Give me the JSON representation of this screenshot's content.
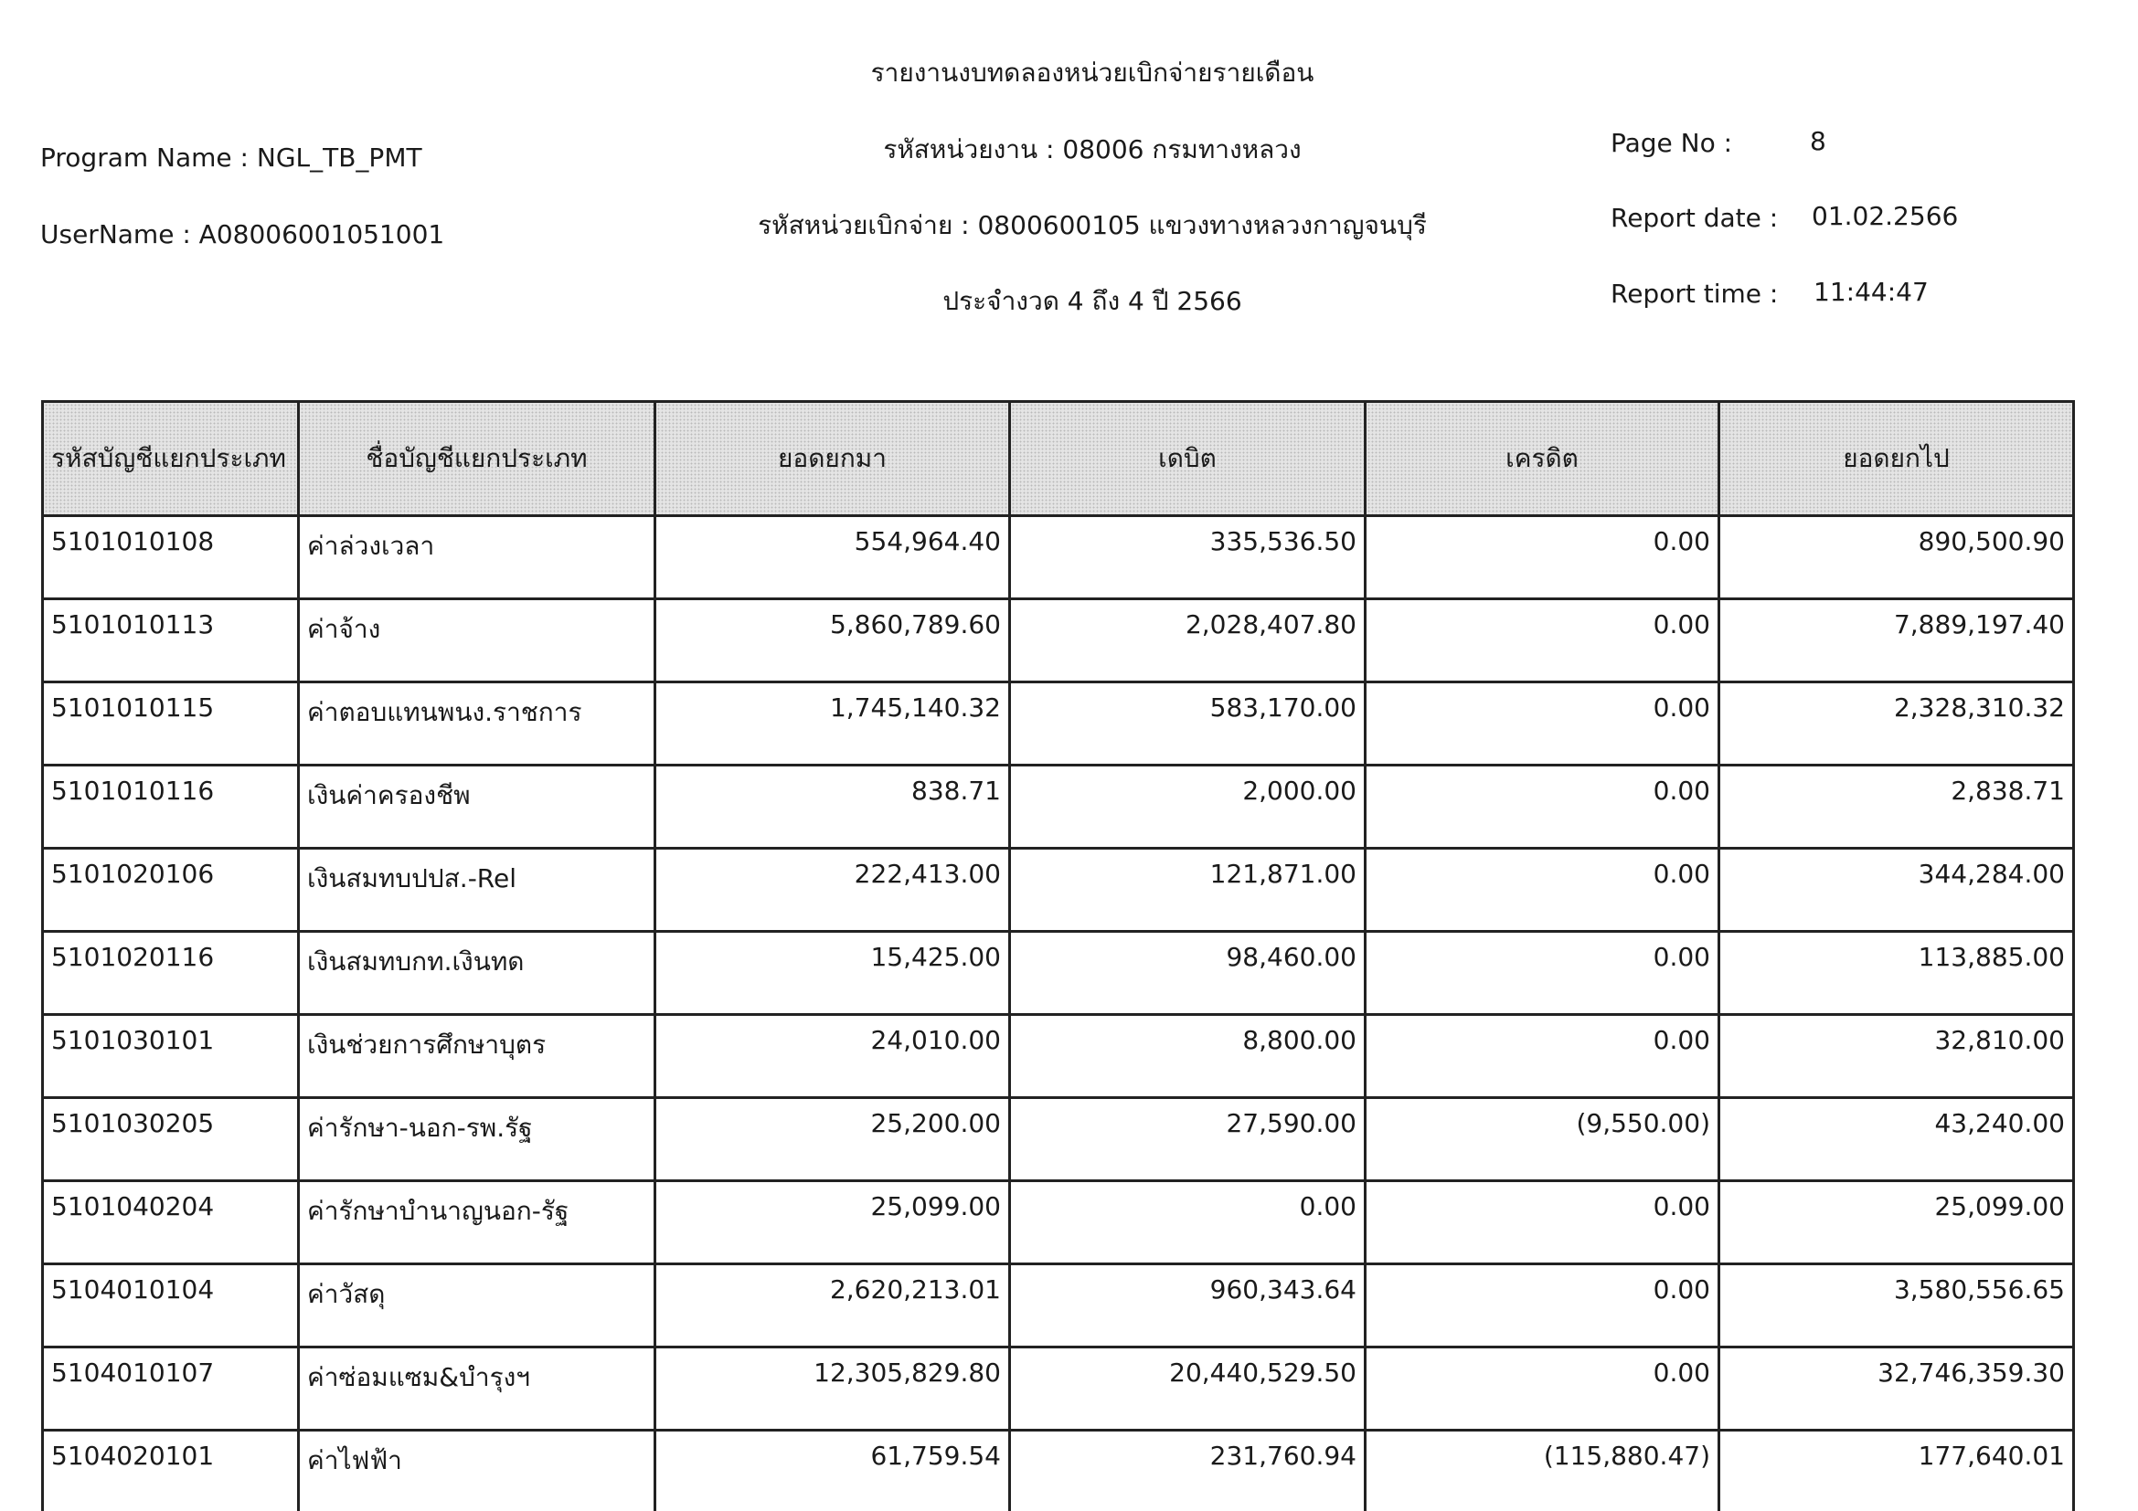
{
  "header": {
    "title": "รายงานงบทดลองหน่วยเบิกจ่ายรายเดือน",
    "agency": "รหัสหน่วยงาน : 08006 กรมทางหลวง",
    "disbursing_unit": "รหัสหน่วยเบิกจ่าย : 0800600105 แขวงทางหลวงกาญจนบุรี",
    "period": "ประจำงวด 4 ถึง 4 ปี 2566",
    "program_name": "Program Name : NGL_TB_PMT",
    "username": "UserName : A08006001051001",
    "page_no_label": "Page No :",
    "page_no": "8",
    "report_date_label": "Report date :",
    "report_date": "01.02.2566",
    "report_time_label": "Report time :",
    "report_time": "11:44:47"
  },
  "table": {
    "columns": [
      "รหัสบัญชีแยกประเภท",
      "ชื่อบัญชีแยกประเภท",
      "ยอดยกมา",
      "เดบิต",
      "เครดิต",
      "ยอดยกไป"
    ],
    "rows": [
      [
        "5101010108",
        "ค่าล่วงเวลา",
        "554,964.40",
        "335,536.50",
        "0.00",
        "890,500.90"
      ],
      [
        "5101010113",
        "ค่าจ้าง",
        "5,860,789.60",
        "2,028,407.80",
        "0.00",
        "7,889,197.40"
      ],
      [
        "5101010115",
        "ค่าตอบแทนพนง.ราชการ",
        "1,745,140.32",
        "583,170.00",
        "0.00",
        "2,328,310.32"
      ],
      [
        "5101010116",
        "เงินค่าครองชีพ",
        "838.71",
        "2,000.00",
        "0.00",
        "2,838.71"
      ],
      [
        "5101020106",
        "เงินสมทบปปส.-Rel",
        "222,413.00",
        "121,871.00",
        "0.00",
        "344,284.00"
      ],
      [
        "5101020116",
        "เงินสมทบกท.เงินทด",
        "15,425.00",
        "98,460.00",
        "0.00",
        "113,885.00"
      ],
      [
        "5101030101",
        "เงินช่วยการศึกษาบุตร",
        "24,010.00",
        "8,800.00",
        "0.00",
        "32,810.00"
      ],
      [
        "5101030205",
        "ค่ารักษา-นอก-รพ.รัฐ",
        "25,200.00",
        "27,590.00",
        "(9,550.00)",
        "43,240.00"
      ],
      [
        "5101040204",
        "ค่ารักษาบำนาญนอก-รัฐ",
        "25,099.00",
        "0.00",
        "0.00",
        "25,099.00"
      ],
      [
        "5104010104",
        "ค่าวัสดุ",
        "2,620,213.01",
        "960,343.64",
        "0.00",
        "3,580,556.65"
      ],
      [
        "5104010107",
        "ค่าซ่อมแซม&บำรุงฯ",
        "12,305,829.80",
        "20,440,529.50",
        "0.00",
        "32,746,359.30"
      ],
      [
        "5104020101",
        "ค่าไฟฟ้า",
        "61,759.54",
        "231,760.94",
        "(115,880.47)",
        "177,640.01"
      ]
    ]
  }
}
